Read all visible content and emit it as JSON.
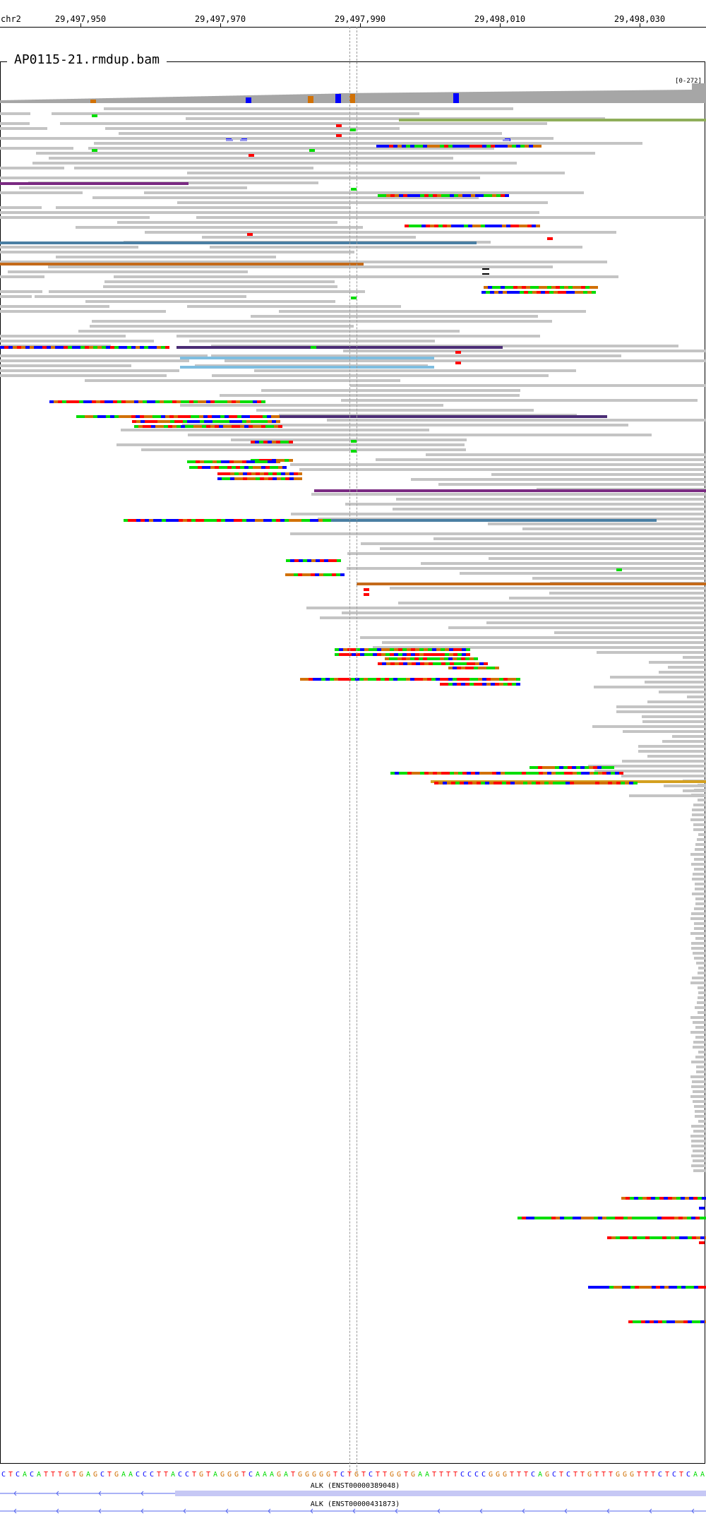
{
  "ruler": {
    "chromosome": "chr2",
    "ticks": [
      {
        "label": "29,497,950",
        "pos": 29497950
      },
      {
        "label": "29,497,970",
        "pos": 29497970
      },
      {
        "label": "29,497,990",
        "pos": 29497990
      },
      {
        "label": "29,498,010",
        "pos": 29498010
      },
      {
        "label": "29,498,030",
        "pos": 29498030
      }
    ]
  },
  "track": {
    "name": "AP0115-21.rmdup.bam",
    "coverage_range": "[0-272]"
  },
  "colors": {
    "read": "#c4c4c4",
    "coverage": "#a6a6a6",
    "A": "#00dd00",
    "C": "#0000ff",
    "G": "#d17105",
    "T": "#ff0000",
    "insert_purple": "#7a2a82",
    "insert_blue": "#4a7fa3",
    "insert_lightblue": "#7ebde0",
    "insert_green": "#8fae5a",
    "insert_orange": "#c46a1a",
    "insert_indigo": "#4b2d75",
    "insert_yellow": "#d4a020",
    "guide": "#9a9a9a",
    "gene": "#5566ee"
  },
  "sequence": "CTCACATTTGTGAGCTGAACCCTTACCTGTAGGGTCAAAGATGGGGGTCTGTCTTGGTGAATTTTCCCCGGGTTTCAGCTCTTGTTTGGGTTTCTCTCAA",
  "genes": [
    {
      "label": "ALK (ENST00000389048)"
    },
    {
      "label": "ALK (ENST00000431873)"
    }
  ]
}
